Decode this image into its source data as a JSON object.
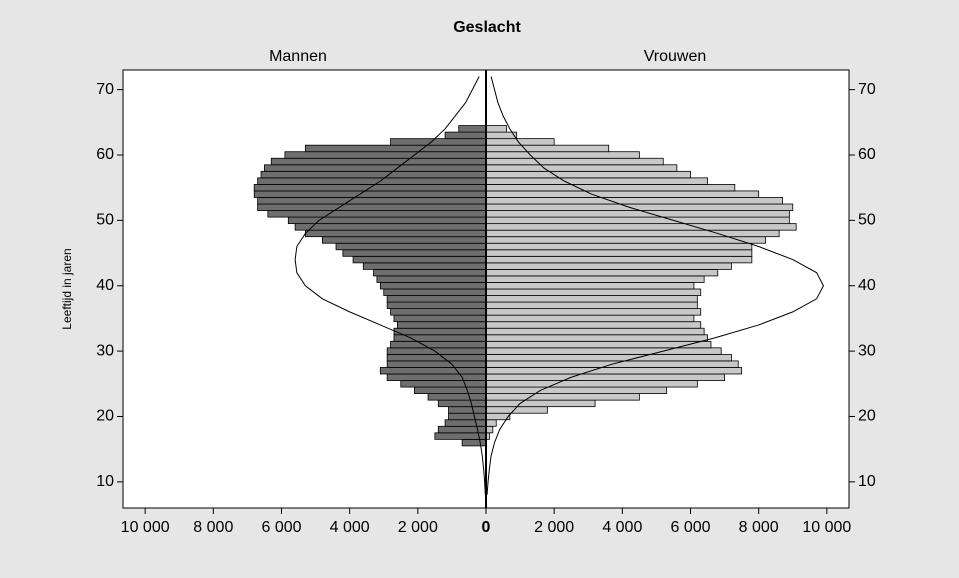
{
  "chart_data": {
    "type": "pyramid",
    "title": "Geslacht",
    "ylabel": "Leeftijd in jaren",
    "y": [
      16,
      17,
      18,
      19,
      20,
      21,
      22,
      23,
      24,
      25,
      26,
      27,
      28,
      29,
      30,
      31,
      32,
      33,
      34,
      35,
      36,
      37,
      38,
      39,
      40,
      41,
      42,
      43,
      44,
      45,
      46,
      47,
      48,
      49,
      50,
      51,
      52,
      53,
      54,
      55,
      56,
      57,
      58,
      59,
      60,
      61,
      62,
      63,
      64
    ],
    "series": [
      {
        "name": "Mannen",
        "color": "#6e6e6e",
        "values": [
          -700,
          -1500,
          -1400,
          -1200,
          -1100,
          -1100,
          -1400,
          -1700,
          -2100,
          -2500,
          -2900,
          -3100,
          -2900,
          -2900,
          -2900,
          -2800,
          -2700,
          -2700,
          -2600,
          -2700,
          -2800,
          -2900,
          -2900,
          -3000,
          -3100,
          -3200,
          -3300,
          -3600,
          -3900,
          -4200,
          -4400,
          -4800,
          -5300,
          -5600,
          -5800,
          -6400,
          -6700,
          -6700,
          -6800,
          -6800,
          -6700,
          -6600,
          -6500,
          -6300,
          -5900,
          -5300,
          -2800,
          -1200,
          -800
        ],
        "curve": [
          -20,
          -40,
          -70,
          -110,
          -170,
          -250,
          -340,
          -430,
          -550,
          -700,
          -1000,
          -1500,
          -2200,
          -3100,
          -4000,
          -4800,
          -5300,
          -5550,
          -5600,
          -5550,
          -5300,
          -4900,
          -4300,
          -3700,
          -3100,
          -2600,
          -2100,
          -1600,
          -1200,
          -900,
          -600,
          -400,
          -200
        ]
      },
      {
        "name": "Vrouwen",
        "color": "#c8c8c8",
        "values": [
          0,
          100,
          200,
          300,
          700,
          1800,
          3200,
          4500,
          5300,
          6200,
          7000,
          7500,
          7400,
          7200,
          6900,
          6600,
          6500,
          6400,
          6300,
          6100,
          6300,
          6200,
          6200,
          6300,
          6100,
          6400,
          6800,
          7200,
          7800,
          7800,
          7800,
          8200,
          8600,
          9100,
          8900,
          8900,
          9000,
          8700,
          8000,
          7300,
          6500,
          6000,
          5600,
          5200,
          4500,
          3600,
          2000,
          900,
          600
        ],
        "curve": [
          30,
          60,
          100,
          150,
          250,
          400,
          650,
          1000,
          1600,
          2500,
          3700,
          5200,
          6700,
          8000,
          9000,
          9700,
          9900,
          9700,
          9000,
          8000,
          6800,
          5500,
          4200,
          3100,
          2300,
          1700,
          1300,
          950,
          700,
          500,
          350,
          250,
          150
        ]
      }
    ],
    "curve_y": [
      8,
      10,
      12,
      14,
      16,
      18,
      20,
      22,
      24,
      26,
      28,
      30,
      32,
      34,
      36,
      38,
      40,
      42,
      44,
      46,
      48,
      50,
      52,
      54,
      56,
      58,
      60,
      62,
      64,
      66,
      68,
      70,
      72
    ],
    "xlim": [
      -10650,
      10650
    ],
    "ylim": [
      6,
      73
    ],
    "xticks": [
      {
        "value": -10000,
        "label": "10 000"
      },
      {
        "value": -8000,
        "label": "8 000"
      },
      {
        "value": -6000,
        "label": "6 000"
      },
      {
        "value": -4000,
        "label": "4 000"
      },
      {
        "value": -2000,
        "label": "2 000"
      },
      0,
      {
        "value": 2000,
        "label": "2 000"
      },
      {
        "value": 4000,
        "label": "4 000"
      },
      {
        "value": 6000,
        "label": "6 000"
      },
      {
        "value": 8000,
        "label": "8 000"
      },
      {
        "value": 10000,
        "label": "10 000"
      }
    ],
    "yticks": [
      10,
      20,
      30,
      40,
      50,
      60,
      70
    ]
  }
}
